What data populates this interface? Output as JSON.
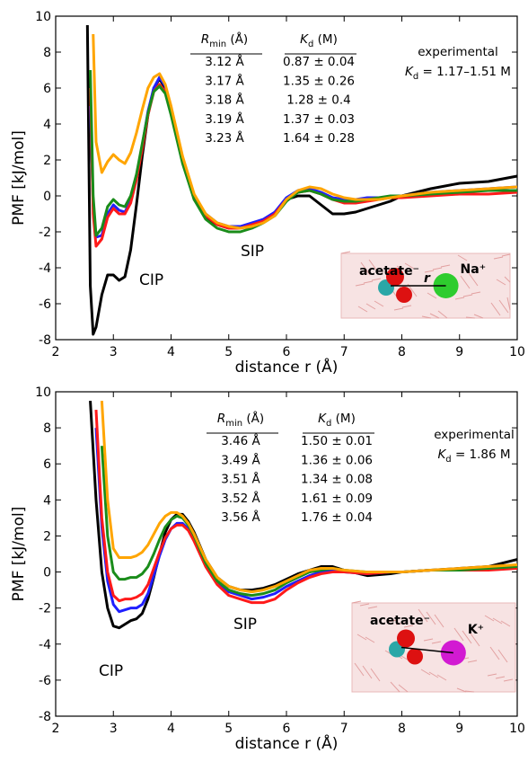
{
  "chart_data": [
    {
      "type": "line",
      "x_label": "distance r (Å)",
      "y_label": "PMF [kJ/mol]",
      "xlim": [
        2,
        10
      ],
      "ylim": [
        -8,
        10
      ],
      "xticks": [
        2,
        3,
        4,
        5,
        6,
        7,
        8,
        9,
        10
      ],
      "yticks": [
        -8,
        -6,
        -4,
        -2,
        0,
        2,
        4,
        6,
        8,
        10
      ],
      "table_header": [
        [
          "R",
          "min",
          " (Å)"
        ],
        [
          "K",
          "d",
          " (M)"
        ]
      ],
      "experimental": {
        "label": "experimental",
        "value": [
          "K",
          "d",
          " = 1.17–1.51 M"
        ]
      },
      "annotations": [
        "CIP",
        "SIP"
      ],
      "inset_labels": [
        "acetate⁻",
        "r",
        "Na⁺"
      ],
      "x": [
        2.5,
        2.55,
        2.6,
        2.65,
        2.7,
        2.8,
        2.9,
        3.0,
        3.1,
        3.2,
        3.3,
        3.4,
        3.5,
        3.6,
        3.7,
        3.8,
        3.9,
        4.0,
        4.2,
        4.4,
        4.6,
        4.8,
        5.0,
        5.2,
        5.4,
        5.6,
        5.8,
        6.0,
        6.2,
        6.4,
        6.6,
        6.8,
        7.0,
        7.2,
        7.4,
        7.6,
        7.8,
        8.0,
        8.5,
        9.0,
        9.5,
        10.0
      ],
      "series": [
        {
          "name": "3.12 Å",
          "kd": "0.87 ± 0.04",
          "color": "#000000",
          "values": [
            null,
            9.5,
            -5,
            -7.7,
            -7.3,
            -5.5,
            -4.4,
            -4.4,
            -4.7,
            -4.5,
            -3,
            -0.5,
            2.2,
            4.5,
            6,
            6.5,
            6,
            4.8,
            2,
            -0.2,
            -1.2,
            -1.6,
            -1.8,
            -1.8,
            -1.6,
            -1.4,
            -1,
            -0.2,
            0,
            0,
            -0.5,
            -1,
            -1,
            -0.9,
            -0.7,
            -0.5,
            -0.3,
            0,
            0.4,
            0.7,
            0.8,
            1.1
          ]
        },
        {
          "name": "3.17 Å",
          "kd": "1.35 ± 0.26",
          "color": "#1f1fff",
          "values": [
            null,
            null,
            5,
            -0.5,
            -2.3,
            -2.2,
            -1.0,
            -0.5,
            -0.8,
            -0.9,
            -0.3,
            1,
            2.8,
            4.7,
            6,
            6.6,
            6.1,
            4.8,
            2,
            0,
            -1,
            -1.5,
            -1.7,
            -1.7,
            -1.5,
            -1.3,
            -0.9,
            -0.1,
            0.3,
            0.4,
            0.2,
            -0.1,
            -0.2,
            -0.2,
            -0.1,
            -0.1,
            -0.1,
            0,
            0.2,
            0.3,
            0.4,
            0.5
          ]
        },
        {
          "name": "3.18 Å",
          "kd": "1.28 ± 0.4",
          "color": "#ff1a1a",
          "values": [
            null,
            null,
            6,
            -1,
            -2.8,
            -2.4,
            -1.2,
            -0.7,
            -1.0,
            -1.0,
            -0.4,
            0.9,
            2.6,
            4.5,
            5.8,
            6.2,
            5.8,
            4.6,
            2.0,
            0,
            -1.1,
            -1.6,
            -1.8,
            -1.8,
            -1.6,
            -1.4,
            -1.0,
            -0.2,
            0.2,
            0.3,
            0.1,
            -0.2,
            -0.4,
            -0.4,
            -0.3,
            -0.2,
            -0.1,
            -0.1,
            0,
            0.1,
            0.1,
            0.2
          ]
        },
        {
          "name": "3.19 Å",
          "kd": "1.37 ± 0.03",
          "color": "#1a8c1a",
          "values": [
            null,
            null,
            7,
            0,
            -2.2,
            -1.8,
            -0.6,
            -0.2,
            -0.5,
            -0.6,
            0,
            1.2,
            2.9,
            4.6,
            5.8,
            6.1,
            5.7,
            4.5,
            1.8,
            -0.2,
            -1.3,
            -1.8,
            -2.0,
            -2.0,
            -1.8,
            -1.5,
            -1.1,
            -0.3,
            0.2,
            0.3,
            0.1,
            -0.2,
            -0.3,
            -0.3,
            -0.2,
            -0.1,
            0,
            0,
            0.1,
            0.2,
            0.3,
            0.3
          ]
        },
        {
          "name": "3.23 Å",
          "kd": "1.64 ± 0.28",
          "color": "#ffa500",
          "values": [
            null,
            null,
            null,
            9,
            3,
            1.3,
            1.9,
            2.3,
            2.0,
            1.8,
            2.4,
            3.5,
            4.8,
            6,
            6.6,
            6.8,
            6.2,
            5,
            2.2,
            0.1,
            -1,
            -1.5,
            -1.7,
            -1.8,
            -1.7,
            -1.5,
            -1.1,
            -0.2,
            0.3,
            0.5,
            0.4,
            0.1,
            -0.1,
            -0.2,
            -0.2,
            -0.2,
            -0.1,
            0,
            0.2,
            0.3,
            0.4,
            0.5
          ]
        }
      ]
    },
    {
      "type": "line",
      "x_label": "distance r (Å)",
      "y_label": "PMF [kJ/mol]",
      "xlim": [
        2,
        10
      ],
      "ylim": [
        -8,
        10
      ],
      "xticks": [
        2,
        3,
        4,
        5,
        6,
        7,
        8,
        9,
        10
      ],
      "yticks": [
        -8,
        -6,
        -4,
        -2,
        0,
        2,
        4,
        6,
        8,
        10
      ],
      "table_header": [
        [
          "R",
          "min",
          " (Å)"
        ],
        [
          "K",
          "d",
          " (M)"
        ]
      ],
      "experimental": {
        "label": "experimental",
        "value": [
          "K",
          "d",
          " = 1.86 M"
        ]
      },
      "annotations": [
        "CIP",
        "SIP"
      ],
      "inset_labels": [
        "acetate⁻",
        "K⁺"
      ],
      "x": [
        2.6,
        2.7,
        2.8,
        2.9,
        3.0,
        3.1,
        3.2,
        3.3,
        3.4,
        3.5,
        3.6,
        3.7,
        3.8,
        3.9,
        4.0,
        4.1,
        4.2,
        4.3,
        4.4,
        4.6,
        4.8,
        5.0,
        5.2,
        5.4,
        5.6,
        5.8,
        6.0,
        6.2,
        6.4,
        6.6,
        6.8,
        7.0,
        7.4,
        7.8,
        8.0,
        8.5,
        9.0,
        9.5,
        10.0
      ],
      "series": [
        {
          "name": "3.46 Å",
          "kd": "1.50 ± 0.01",
          "color": "#000000",
          "values": [
            9.5,
            4,
            0,
            -2,
            -3,
            -3.1,
            -2.9,
            -2.7,
            -2.6,
            -2.3,
            -1.5,
            -0.3,
            1,
            2.2,
            2.9,
            3.2,
            3.2,
            2.8,
            2.2,
            0.7,
            -0.3,
            -0.8,
            -1,
            -1,
            -0.9,
            -0.7,
            -0.4,
            -0.1,
            0.1,
            0.3,
            0.3,
            0.1,
            -0.2,
            -0.1,
            0,
            0.1,
            0.2,
            0.3,
            0.7
          ]
        },
        {
          "name": "3.49 Å",
          "kd": "1.36 ± 0.06",
          "color": "#1f1fff",
          "values": [
            null,
            8,
            2.5,
            -0.5,
            -1.8,
            -2.2,
            -2.1,
            -2.0,
            -2.0,
            -1.8,
            -1.2,
            -0.2,
            0.9,
            1.8,
            2.4,
            2.7,
            2.7,
            2.4,
            1.8,
            0.4,
            -0.6,
            -1.1,
            -1.3,
            -1.5,
            -1.4,
            -1.2,
            -0.8,
            -0.5,
            -0.2,
            0,
            0.1,
            0,
            -0.1,
            0,
            0,
            0.1,
            0.1,
            0.2,
            0.3
          ]
        },
        {
          "name": "3.51 Å",
          "kd": "1.34 ± 0.08",
          "color": "#ff1a1a",
          "values": [
            null,
            9,
            3,
            0,
            -1.3,
            -1.6,
            -1.5,
            -1.5,
            -1.4,
            -1.2,
            -0.7,
            0.2,
            1.1,
            1.9,
            2.4,
            2.6,
            2.6,
            2.3,
            1.7,
            0.3,
            -0.7,
            -1.3,
            -1.5,
            -1.7,
            -1.7,
            -1.5,
            -1.0,
            -0.6,
            -0.3,
            -0.1,
            0,
            0,
            -0.1,
            0,
            0,
            0.1,
            0.1,
            0.1,
            0.2
          ]
        },
        {
          "name": "3.52 Å",
          "kd": "1.61 ± 0.09",
          "color": "#1a8c1a",
          "values": [
            null,
            null,
            7,
            2,
            0,
            -0.4,
            -0.4,
            -0.3,
            -0.3,
            -0.1,
            0.3,
            1.0,
            1.8,
            2.5,
            2.9,
            3.1,
            3.0,
            2.6,
            2.0,
            0.5,
            -0.5,
            -1.0,
            -1.2,
            -1.3,
            -1.2,
            -1.0,
            -0.6,
            -0.3,
            0,
            0.1,
            0.2,
            0.1,
            0,
            0,
            0,
            0.1,
            0.1,
            0.2,
            0.3
          ]
        },
        {
          "name": "3.56 Å",
          "kd": "1.76 ± 0.04",
          "color": "#ffa500",
          "values": [
            null,
            null,
            9.5,
            4,
            1.3,
            0.8,
            0.8,
            0.8,
            0.9,
            1.1,
            1.5,
            2.1,
            2.7,
            3.1,
            3.3,
            3.3,
            3.1,
            2.7,
            2.1,
            0.7,
            -0.3,
            -0.8,
            -1.0,
            -1.1,
            -1.0,
            -0.8,
            -0.5,
            -0.2,
            0.1,
            0.2,
            0.2,
            0.1,
            0,
            0,
            0,
            0.1,
            0.2,
            0.3,
            0.4
          ]
        }
      ]
    }
  ]
}
